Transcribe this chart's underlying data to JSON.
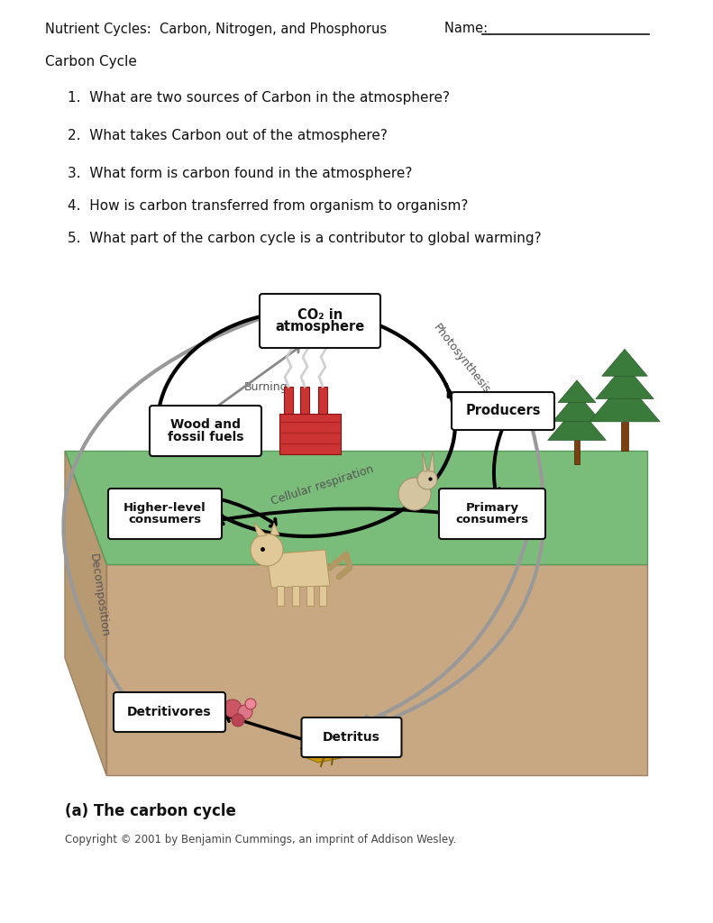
{
  "title_left": "Nutrient Cycles:  Carbon, Nitrogen, and Phosphorus",
  "title_right": "Name: ___________________",
  "section_header": "Carbon Cycle",
  "questions": [
    "1.  What are two sources of Carbon in the atmosphere?",
    "2.  What takes Carbon out of the atmosphere?",
    "3.  What form is carbon found in the atmosphere?",
    "4.  How is carbon transferred from organism to organism?",
    "5.  What part of the carbon cycle is a contributor to global warming?"
  ],
  "diagram_caption_bold": "(a) The carbon cycle",
  "copyright": "Copyright © 2001 by Benjamin Cummings, an imprint of Addison Wesley.",
  "bg_color": "#ffffff",
  "text_color": "#111111",
  "gray_color": "#999999",
  "black_color": "#111111",
  "soil_color": "#C8A882",
  "soil_left_color": "#B89A72",
  "green_color": "#7ABD7A",
  "green_edge": "#5A9A5A",
  "soil_edge": "#A08060",
  "box_fill": "#ffffff",
  "box_edge": "#111111",
  "label_gray": "#555555",
  "factory_red": "#CC3333",
  "tree_green": "#3A7A3A",
  "tree_dark": "#2A5A2A",
  "tree_trunk": "#7B4010",
  "detritus_gold": "#C8960C",
  "microbe_red": "#CC5566",
  "q_y": [
    108,
    150,
    192,
    228,
    264
  ],
  "q_indent": 75
}
